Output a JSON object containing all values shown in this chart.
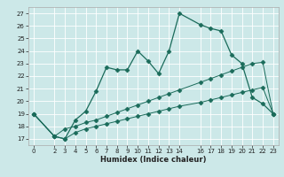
{
  "xlabel": "Humidex (Indice chaleur)",
  "bg_color": "#cce8e8",
  "grid_color": "#ffffff",
  "line_color": "#1a6b5a",
  "xlim": [
    -0.5,
    23.5
  ],
  "ylim": [
    16.5,
    27.5
  ],
  "xticks": [
    0,
    2,
    3,
    4,
    5,
    6,
    7,
    8,
    9,
    10,
    11,
    12,
    13,
    14,
    16,
    17,
    18,
    19,
    20,
    21,
    22,
    23
  ],
  "yticks": [
    17,
    18,
    19,
    20,
    21,
    22,
    23,
    24,
    25,
    26,
    27
  ],
  "series_main_x": [
    0,
    2,
    3,
    4,
    5,
    6,
    7,
    8,
    9,
    10,
    11,
    12,
    13,
    14,
    16,
    17,
    18,
    19,
    20,
    21,
    22,
    23
  ],
  "series_main_y": [
    19.0,
    17.2,
    17.0,
    18.5,
    19.2,
    20.8,
    22.7,
    22.5,
    22.5,
    24.0,
    23.2,
    22.2,
    24.0,
    27.0,
    26.1,
    25.8,
    25.6,
    23.7,
    23.0,
    20.3,
    19.8,
    19.0
  ],
  "series_mid_x": [
    0,
    2,
    3,
    4,
    5,
    6,
    7,
    8,
    9,
    10,
    11,
    12,
    13,
    14,
    16,
    17,
    18,
    19,
    20,
    21,
    22,
    23
  ],
  "series_mid_y": [
    19.0,
    17.2,
    17.8,
    18.0,
    18.3,
    18.5,
    18.8,
    19.1,
    19.4,
    19.7,
    20.0,
    20.3,
    20.6,
    20.9,
    21.5,
    21.8,
    22.1,
    22.4,
    22.7,
    23.0,
    23.1,
    19.0
  ],
  "series_low_x": [
    0,
    2,
    3,
    4,
    5,
    6,
    7,
    8,
    9,
    10,
    11,
    12,
    13,
    14,
    16,
    17,
    18,
    19,
    20,
    21,
    22,
    23
  ],
  "series_low_y": [
    19.0,
    17.2,
    17.0,
    17.5,
    17.8,
    18.0,
    18.2,
    18.4,
    18.6,
    18.8,
    19.0,
    19.2,
    19.4,
    19.6,
    19.9,
    20.1,
    20.3,
    20.5,
    20.7,
    20.9,
    21.1,
    19.0
  ]
}
